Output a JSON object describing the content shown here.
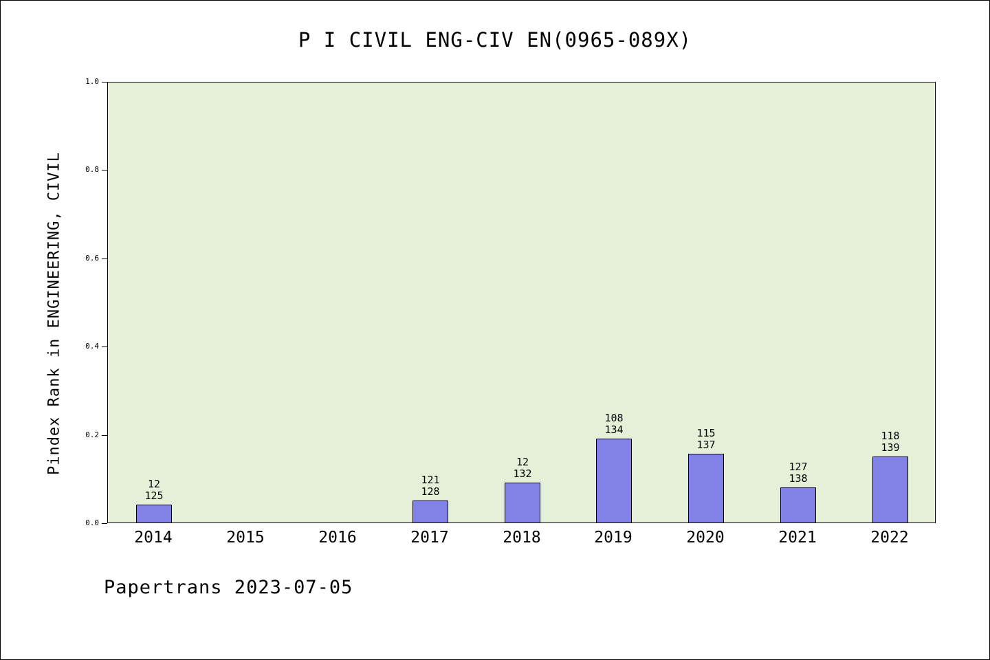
{
  "page": {
    "footer": "Papertrans 2023-07-05"
  },
  "chart_data": {
    "type": "bar",
    "title": "P I CIVIL ENG-CIV EN(0965-089X)",
    "xlabel": "",
    "ylabel": "Pindex Rank in ENGINEERING, CIVIL",
    "categories": [
      "2014",
      "2015",
      "2016",
      "2017",
      "2018",
      "2019",
      "2020",
      "2021",
      "2022"
    ],
    "values": [
      0.04,
      0,
      0,
      0.05,
      0.09,
      0.19,
      0.155,
      0.08,
      0.15
    ],
    "bar_labels": [
      [
        "12",
        "125"
      ],
      null,
      null,
      [
        "121",
        "128"
      ],
      [
        "12",
        "132"
      ],
      [
        "108",
        "134"
      ],
      [
        "115",
        "137"
      ],
      [
        "127",
        "138"
      ],
      [
        "118",
        "139"
      ]
    ],
    "ylim": [
      0,
      1
    ],
    "yticks": [
      0.0,
      0.2,
      0.4,
      0.6,
      0.8,
      1.0
    ],
    "grid": false,
    "legend": null,
    "colors": {
      "bar_fill": "#8181e8",
      "bar_edge": "#000000",
      "plot_bg": "#e5f0d9",
      "page_bg": "#ffffff"
    }
  }
}
